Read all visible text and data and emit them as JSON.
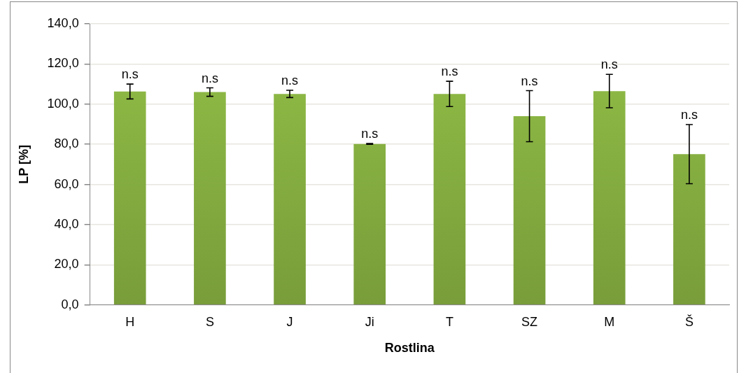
{
  "chart_data": {
    "type": "bar",
    "xlabel": "Rostlina",
    "ylabel": "LP [%]",
    "categories": [
      "H",
      "S",
      "J",
      "Ji",
      "T",
      "SZ",
      "M",
      "Š"
    ],
    "values": [
      106.3,
      106.0,
      105.1,
      80.2,
      105.1,
      94.0,
      106.5,
      75.1
    ],
    "errors": [
      3.7,
      2.1,
      1.8,
      0.2,
      6.3,
      12.7,
      8.3,
      14.7
    ],
    "color": "#92bf47",
    "ylim": [
      0,
      140
    ],
    "yticks": [
      {
        "value": 0,
        "label": "0,0"
      },
      {
        "value": 20,
        "label": "20,0"
      },
      {
        "value": 40,
        "label": "40,0"
      },
      {
        "value": 60,
        "label": "60,0"
      },
      {
        "value": 80,
        "label": "80,0"
      },
      {
        "value": 100,
        "label": "100,0"
      },
      {
        "value": 120,
        "label": "120,0"
      },
      {
        "value": 140,
        "label": "140,0"
      }
    ],
    "grid": "y",
    "legend": false,
    "annotations": [
      {
        "text": "n.s",
        "x": "H",
        "y": 110
      },
      {
        "text": "n.s",
        "x": "S",
        "y": 108
      },
      {
        "text": "n.s",
        "x": "J",
        "y": 107
      },
      {
        "text": "n.s",
        "x": "Ji",
        "y": 80.4
      },
      {
        "text": "n.s",
        "x": "T",
        "y": 111.4
      },
      {
        "text": "n.s",
        "x": "SZ",
        "y": 106.7
      },
      {
        "text": "n.s",
        "x": "M",
        "y": 114.8
      },
      {
        "text": "n.s",
        "x": "Š",
        "y": 89.8
      }
    ]
  }
}
